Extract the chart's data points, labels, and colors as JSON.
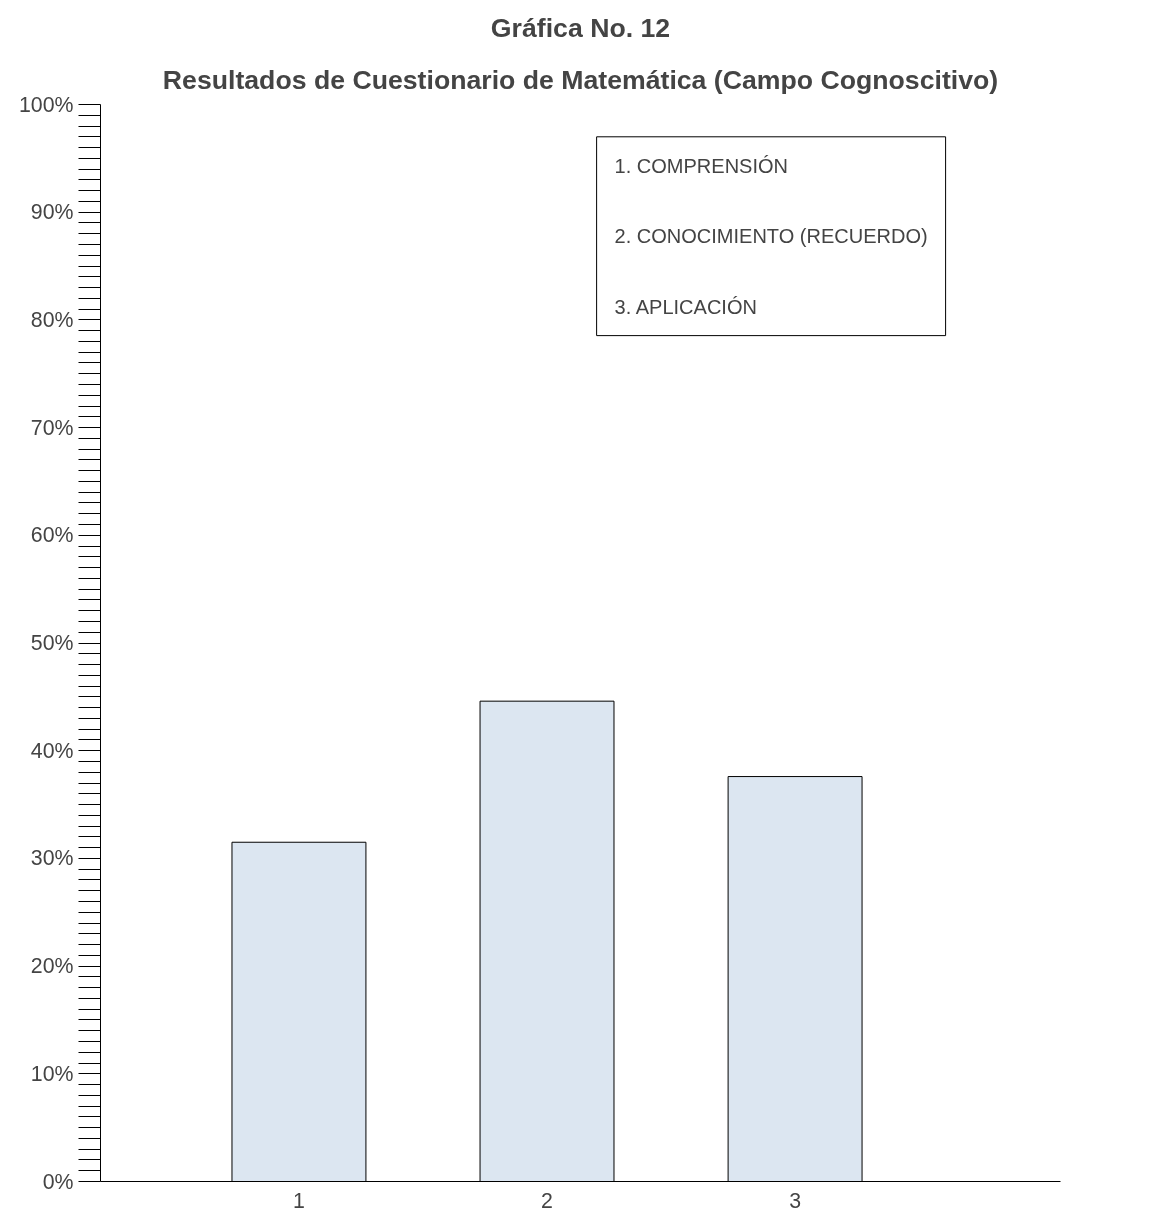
{
  "chart_data": {
    "type": "bar",
    "title": "Gráfica No. 12",
    "subtitle": "Resultados de Cuestionario de Matemática (Campo Cognoscitivo)",
    "categories": [
      "1",
      "2",
      "3"
    ],
    "values": [
      31.5,
      44.6,
      37.6
    ],
    "color": "#dce6f1",
    "ylim": [
      0,
      100
    ],
    "yticks": [
      {
        "value": 0,
        "label": "0%"
      },
      {
        "value": 10,
        "label": "10%"
      },
      {
        "value": 20,
        "label": "20%"
      },
      {
        "value": 30,
        "label": "30%"
      },
      {
        "value": 40,
        "label": "40%"
      },
      {
        "value": 50,
        "label": "50%"
      },
      {
        "value": 60,
        "label": "60%"
      },
      {
        "value": 70,
        "label": "70%"
      },
      {
        "value": 80,
        "label": "80%"
      },
      {
        "value": 90,
        "label": "90%"
      },
      {
        "value": 100,
        "label": "100%"
      }
    ],
    "annotations": [
      "1. COMPRENSIÓN",
      "2. CONOCIMIENTO (RECUERDO)",
      "3. APLICACIÓN"
    ],
    "grid": false
  }
}
